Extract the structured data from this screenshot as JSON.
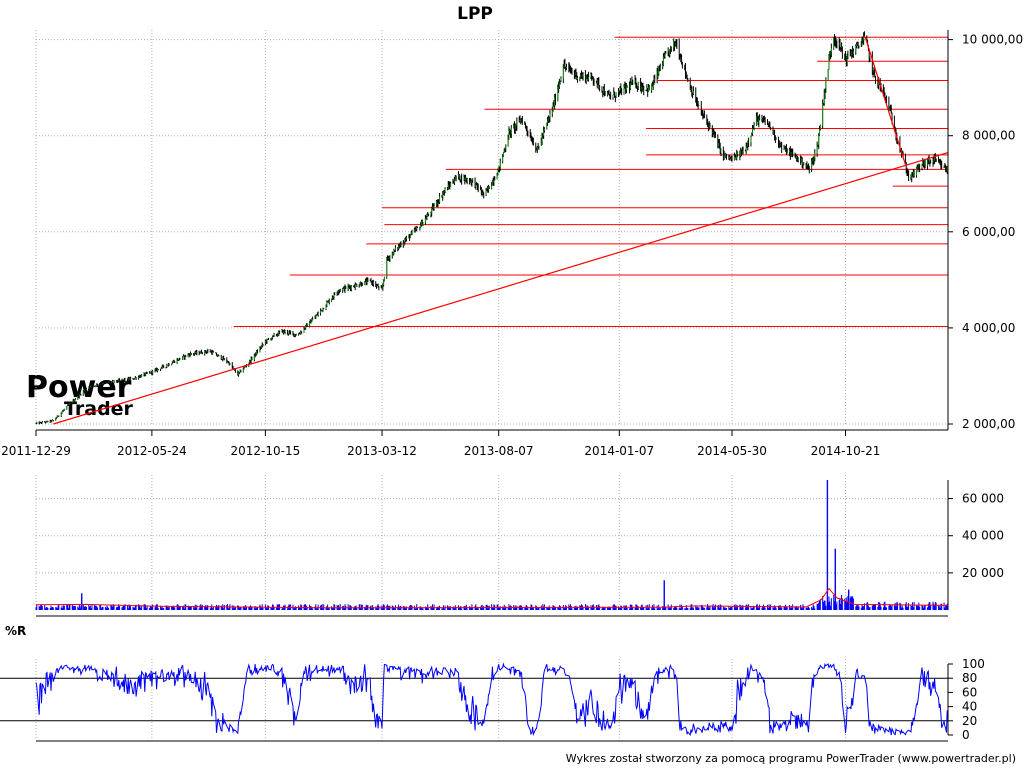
{
  "title": "LPP",
  "footer": "Wykres został stworzony za pomocą programu PowerTrader (www.powertrader.pl)",
  "watermark": {
    "line1": "Power",
    "line2": "Trader"
  },
  "colors": {
    "candle_up": "#00aa00",
    "candle_body": "#000000",
    "level_line": "#ff0000",
    "trend_line": "#ff0000",
    "volume": "#0000ff",
    "volume_avg": "#ff0000",
    "williams": "#0000ff",
    "grid": "#b0b0b0",
    "watermark": "#f4c4c4"
  },
  "chart_data": [
    {
      "type": "line",
      "panel": "price",
      "title": "LPP",
      "xlabel": "",
      "ylabel": "",
      "x_ticks": [
        "2011-12-29",
        "2012-05-24",
        "2012-10-15",
        "2013-03-12",
        "2013-08-07",
        "2014-01-07",
        "2014-05-30",
        "2014-10-21"
      ],
      "y_ticks": [
        {
          "value": 2000,
          "label": "2 000,00"
        },
        {
          "value": 4000,
          "label": "4 000,00"
        },
        {
          "value": 6000,
          "label": "6 000,00"
        },
        {
          "value": 8000,
          "label": "8 000,00"
        },
        {
          "value": 10000,
          "label": "10 000,00"
        }
      ],
      "ylim": [
        2000,
        10200
      ],
      "grid": true,
      "x_range": [
        "2011-12-29",
        "2015-02-28"
      ],
      "close_points": [
        [
          "2011-12-29",
          2010
        ],
        [
          "2012-01-20",
          2070
        ],
        [
          "2012-02-10",
          2420
        ],
        [
          "2012-03-05",
          2780
        ],
        [
          "2012-04-02",
          2870
        ],
        [
          "2012-05-01",
          2950
        ],
        [
          "2012-05-24",
          3080
        ],
        [
          "2012-06-15",
          3250
        ],
        [
          "2012-07-10",
          3450
        ],
        [
          "2012-08-05",
          3520
        ],
        [
          "2012-08-28",
          3300
        ],
        [
          "2012-09-10",
          3030
        ],
        [
          "2012-09-25",
          3300
        ],
        [
          "2012-10-15",
          3720
        ],
        [
          "2012-11-05",
          3930
        ],
        [
          "2012-11-25",
          3850
        ],
        [
          "2012-12-20",
          4280
        ],
        [
          "2013-01-15",
          4780
        ],
        [
          "2013-02-05",
          4880
        ],
        [
          "2013-02-25",
          4980
        ],
        [
          "2013-03-12",
          4780
        ],
        [
          "2013-03-18",
          5420
        ],
        [
          "2013-04-05",
          5750
        ],
        [
          "2013-04-25",
          6050
        ],
        [
          "2013-05-10",
          6350
        ],
        [
          "2013-05-28",
          6800
        ],
        [
          "2013-06-15",
          7150
        ],
        [
          "2013-07-05",
          7050
        ],
        [
          "2013-07-20",
          6750
        ],
        [
          "2013-08-07",
          7300
        ],
        [
          "2013-08-20",
          8050
        ],
        [
          "2013-09-05",
          8350
        ],
        [
          "2013-09-25",
          7700
        ],
        [
          "2013-10-15",
          8600
        ],
        [
          "2013-10-28",
          9450
        ],
        [
          "2013-11-15",
          9250
        ],
        [
          "2013-12-05",
          9200
        ],
        [
          "2013-12-25",
          8800
        ],
        [
          "2014-01-07",
          8900
        ],
        [
          "2014-01-25",
          9100
        ],
        [
          "2014-02-15",
          8950
        ],
        [
          "2014-03-05",
          9600
        ],
        [
          "2014-03-20",
          9950
        ],
        [
          "2014-04-05",
          9100
        ],
        [
          "2014-04-20",
          8500
        ],
        [
          "2014-05-05",
          8100
        ],
        [
          "2014-05-18",
          7600
        ],
        [
          "2014-05-30",
          7500
        ],
        [
          "2014-06-15",
          7700
        ],
        [
          "2014-06-30",
          8350
        ],
        [
          "2014-07-15",
          8250
        ],
        [
          "2014-08-01",
          7750
        ],
        [
          "2014-08-20",
          7550
        ],
        [
          "2014-09-05",
          7300
        ],
        [
          "2014-09-15",
          7750
        ],
        [
          "2014-09-25",
          9000
        ],
        [
          "2014-10-05",
          10100
        ],
        [
          "2014-10-15",
          9800
        ],
        [
          "2014-10-21",
          9600
        ],
        [
          "2014-11-05",
          9850
        ],
        [
          "2014-11-15",
          10050
        ],
        [
          "2014-11-25",
          9300
        ],
        [
          "2014-12-05",
          9000
        ],
        [
          "2014-12-15",
          8600
        ],
        [
          "2014-12-28",
          7800
        ],
        [
          "2015-01-10",
          7100
        ],
        [
          "2015-01-25",
          7400
        ],
        [
          "2015-02-10",
          7500
        ],
        [
          "2015-02-25",
          7300
        ]
      ],
      "horizontal_levels": [
        {
          "value": 10050,
          "from": "2014-01-01",
          "to": "2015-02-28"
        },
        {
          "value": 9550,
          "from": "2014-09-15",
          "to": "2015-02-28"
        },
        {
          "value": 9150,
          "from": "2014-02-25",
          "to": "2015-02-28"
        },
        {
          "value": 8550,
          "from": "2013-07-20",
          "to": "2015-02-28"
        },
        {
          "value": 8150,
          "from": "2014-02-10",
          "to": "2015-02-28"
        },
        {
          "value": 7600,
          "from": "2014-02-10",
          "to": "2015-02-28"
        },
        {
          "value": 7300,
          "from": "2013-06-01",
          "to": "2015-02-28"
        },
        {
          "value": 6950,
          "from": "2014-12-20",
          "to": "2015-02-28"
        },
        {
          "value": 6500,
          "from": "2013-03-12",
          "to": "2015-02-28"
        },
        {
          "value": 6150,
          "from": "2013-03-15",
          "to": "2015-02-28"
        },
        {
          "value": 5750,
          "from": "2013-02-20",
          "to": "2015-02-28"
        },
        {
          "value": 5100,
          "from": "2012-11-15",
          "to": "2015-02-28"
        },
        {
          "value": 4030,
          "from": "2012-09-05",
          "to": "2015-02-28"
        }
      ],
      "trend_lines": [
        {
          "from": [
            "2012-01-20",
            2000
          ],
          "to": [
            "2015-02-28",
            7650
          ]
        },
        {
          "from": [
            "2014-11-15",
            10050
          ],
          "to": [
            "2015-01-05",
            7400
          ]
        }
      ]
    },
    {
      "type": "bar",
      "panel": "volume",
      "y_ticks": [
        {
          "value": 20000,
          "label": "20 000"
        },
        {
          "value": 40000,
          "label": "40 000"
        },
        {
          "value": 60000,
          "label": "60 000"
        }
      ],
      "ylim": [
        0,
        70000
      ],
      "spikes": [
        [
          "2012-02-25",
          9000
        ],
        [
          "2013-03-14",
          3000
        ],
        [
          "2014-03-05",
          16000
        ],
        [
          "2014-09-28",
          70000
        ],
        [
          "2014-10-08",
          33000
        ],
        [
          "2014-10-25",
          11000
        ]
      ],
      "average_points": [
        [
          "2011-12-29",
          2800
        ],
        [
          "2012-03-01",
          3000
        ],
        [
          "2012-06-01",
          2000
        ],
        [
          "2013-01-01",
          1200
        ],
        [
          "2014-03-01",
          1500
        ],
        [
          "2014-04-15",
          2200
        ],
        [
          "2014-09-01",
          1600
        ],
        [
          "2014-09-20",
          5500
        ],
        [
          "2014-09-30",
          11500
        ],
        [
          "2014-10-10",
          6500
        ],
        [
          "2014-11-01",
          3000
        ],
        [
          "2015-02-28",
          2500
        ]
      ]
    },
    {
      "type": "line",
      "panel": "williams_r",
      "title": "%R",
      "y_ticks": [
        {
          "value": 0,
          "label": "0"
        },
        {
          "value": 20,
          "label": "20"
        },
        {
          "value": 40,
          "label": "40"
        },
        {
          "value": 60,
          "label": "60"
        },
        {
          "value": 80,
          "label": "80"
        },
        {
          "value": 100,
          "label": "100"
        }
      ],
      "ylim": [
        0,
        100
      ],
      "reference_lines": [
        20,
        80
      ]
    }
  ]
}
